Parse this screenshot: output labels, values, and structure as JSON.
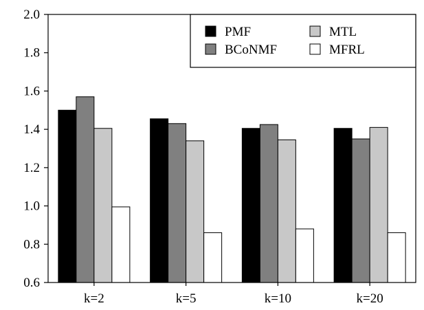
{
  "chart_data": {
    "type": "bar",
    "categories": [
      "k=2",
      "k=5",
      "k=10",
      "k=20"
    ],
    "series": [
      {
        "name": "PMF",
        "values": [
          1.5,
          1.455,
          1.405,
          1.405
        ],
        "color": "#000000"
      },
      {
        "name": "BCoNMF",
        "values": [
          1.57,
          1.43,
          1.425,
          1.35
        ],
        "color": "#808080"
      },
      {
        "name": "MTL",
        "values": [
          1.405,
          1.34,
          1.345,
          1.41
        ],
        "color": "#c8c8c8"
      },
      {
        "name": "MFRL",
        "values": [
          0.995,
          0.86,
          0.88,
          0.86
        ],
        "color": "#ffffff"
      }
    ],
    "ylim": [
      0.6,
      2.0
    ],
    "yticks": [
      "0.6",
      "0.8",
      "1.0",
      "1.2",
      "1.4",
      "1.6",
      "1.8",
      "2.0"
    ],
    "title": "",
    "xlabel": "",
    "ylabel": "",
    "grid": false,
    "legend_position": "top-right"
  }
}
